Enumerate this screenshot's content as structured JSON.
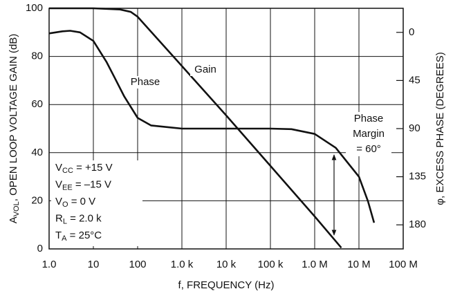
{
  "chart_data": {
    "type": "line",
    "x_label": "f, FREQUENCY (Hz)",
    "y_label": {
      "base": "A",
      "sub": "VOL",
      "rest": ", OPEN LOOP VOLTAGE GAIN (dB)"
    },
    "y2_label": "φ, EXCESS PHASE (DEGREES)",
    "xscale": "log",
    "xlim": [
      1,
      100000000
    ],
    "xticks": [
      {
        "value": 1,
        "label": "1.0"
      },
      10,
      100,
      {
        "value": 1000,
        "label": "1.0 k"
      },
      {
        "value": 10000,
        "label": "10 k"
      },
      {
        "value": 100000,
        "label": "100 k"
      },
      {
        "value": 1000000,
        "label": "1.0 M"
      },
      {
        "value": 10000000,
        "label": "10 M"
      },
      {
        "value": 100000000,
        "label": "100 M"
      }
    ],
    "ylim": [
      0,
      100
    ],
    "yticks": [
      0,
      20,
      40,
      60,
      80,
      100
    ],
    "y2lim": [
      202.5,
      -22.5
    ],
    "y2ticks": [
      0,
      45,
      90,
      135,
      180
    ],
    "grid": true,
    "series": [
      {
        "name": "Gain",
        "color": "#111111",
        "x": [
          1,
          10,
          40,
          70,
          100,
          1000,
          10000,
          100000,
          1000000,
          4000000
        ],
        "values": [
          100,
          100,
          99.5,
          98.5,
          96.5,
          76,
          55.5,
          34.5,
          13.5,
          0.5
        ]
      },
      {
        "name": "Phase",
        "color": "#111111",
        "axis": "y2",
        "x": [
          1,
          2,
          3,
          5,
          10,
          20,
          30,
          50,
          100,
          200,
          1000,
          10000,
          100000,
          300000,
          1000000,
          3000000,
          10000000,
          16000000,
          22000000
        ],
        "values": [
          1,
          -1,
          -1.5,
          0,
          8,
          28,
          42,
          60,
          80,
          87,
          90,
          90,
          90,
          90.5,
          95,
          108,
          135,
          158,
          178
        ]
      }
    ],
    "annotations": [
      "Phase",
      "Margin",
      "= 60°"
    ],
    "conditions": [
      {
        "base": "V",
        "sub": "CC",
        "rest": " =  +15 V"
      },
      {
        "base": "V",
        "sub": "EE",
        "rest": " = –15 V"
      },
      {
        "base": "V",
        "sub": "O",
        "rest": " = 0 V"
      },
      {
        "base": "R",
        "sub": "L",
        "rest": " = 2.0 k"
      },
      {
        "base": "T",
        "sub": "A",
        "rest": " = 25°C"
      }
    ]
  }
}
